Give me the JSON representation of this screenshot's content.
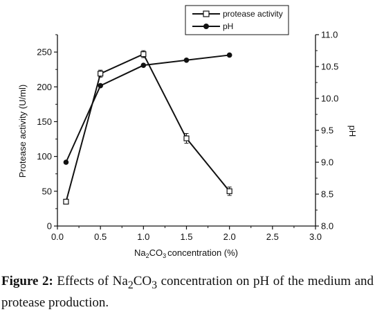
{
  "chart_data": {
    "type": "line",
    "xlabel_prefix": "Na",
    "xlabel_sub1": "2",
    "xlabel_mid": "CO",
    "xlabel_sub2": "3",
    "xlabel_suffix": "concentration (%)",
    "ylabel": "Protease activity (U/ml)",
    "y2label": "pH",
    "xlim": [
      0.0,
      3.0
    ],
    "ylim": [
      0,
      275
    ],
    "y2lim": [
      8.0,
      11.0
    ],
    "x_ticks": [
      "0.0",
      "0.5",
      "1.0",
      "1.5",
      "2.0",
      "2.5",
      "3.0"
    ],
    "y_ticks": [
      "0",
      "50",
      "100",
      "150",
      "200",
      "250"
    ],
    "y2_ticks": [
      "8.0",
      "8.5",
      "9.0",
      "9.5",
      "10.0",
      "10.5",
      "11.0"
    ],
    "legend_position": "top-center",
    "series": [
      {
        "name": "protease activity",
        "axis": "left",
        "marker": "open-square",
        "x": [
          0.1,
          0.5,
          1.0,
          1.5,
          2.0
        ],
        "y": [
          35,
          219,
          247,
          126,
          50
        ],
        "err": [
          3,
          5,
          5,
          7,
          6
        ]
      },
      {
        "name": "pH",
        "axis": "right",
        "marker": "filled-circle",
        "x": [
          0.1,
          0.5,
          1.0,
          1.5,
          2.0
        ],
        "y": [
          9.0,
          10.2,
          10.52,
          10.6,
          10.68
        ]
      }
    ]
  },
  "caption": {
    "label": "Figure 2:",
    "text_a": " Effects of Na",
    "sub1": "2",
    "text_b": "CO",
    "sub2": "3",
    "text_c": " concentration on pH of the medium and protease production."
  }
}
